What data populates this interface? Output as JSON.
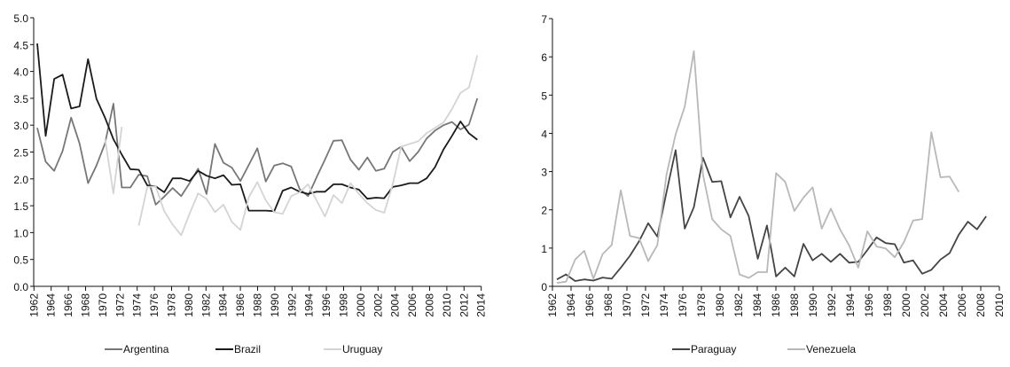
{
  "chart_data": [
    {
      "type": "line",
      "title": "",
      "xlabel": "",
      "ylabel": "",
      "x_start": 1962,
      "x_end": 2014,
      "xticks_step": 2,
      "ylim": [
        0,
        5
      ],
      "yticks": [
        "0.0",
        "0.5",
        "1.0",
        "1.5",
        "2.0",
        "2.5",
        "3.0",
        "3.5",
        "4.0",
        "4.5",
        "5.0"
      ],
      "ytick_values": [
        0,
        0.5,
        1,
        1.5,
        2,
        2.5,
        3,
        3.5,
        4,
        4.5,
        5
      ],
      "grid": false,
      "legend_position": "bottom",
      "series": [
        {
          "name": "Argentina",
          "color": "#777777",
          "start": 1962,
          "values": [
            2.95,
            2.32,
            2.15,
            2.52,
            3.14,
            2.66,
            1.92,
            2.25,
            2.66,
            3.4,
            1.84,
            1.84,
            2.08,
            2.05,
            1.52,
            1.67,
            1.83,
            1.68,
            1.92,
            2.19,
            1.72,
            2.65,
            2.3,
            2.21,
            1.96,
            2.26,
            2.57,
            1.95,
            2.25,
            2.29,
            2.23,
            1.81,
            1.68,
            2.03,
            2.36,
            2.71,
            2.72,
            2.36,
            2.17,
            2.4,
            2.15,
            2.19,
            2.5,
            2.6,
            2.33,
            2.5,
            2.75,
            2.9,
            3.0,
            3.06,
            2.92,
            3.01,
            3.5
          ]
        },
        {
          "name": "Brazil",
          "color": "#1a1a1a",
          "start": 1962,
          "values": [
            4.52,
            2.8,
            3.86,
            3.94,
            3.31,
            3.35,
            4.23,
            3.49,
            3.14,
            2.74,
            2.45,
            2.18,
            2.17,
            1.88,
            1.86,
            1.75,
            2.01,
            2.01,
            1.96,
            2.15,
            2.06,
            2.01,
            2.07,
            1.89,
            1.9,
            1.41,
            1.41,
            1.41,
            1.4,
            1.78,
            1.84,
            1.76,
            1.72,
            1.76,
            1.76,
            1.9,
            1.9,
            1.84,
            1.8,
            1.63,
            1.65,
            1.64,
            1.85,
            1.88,
            1.92,
            1.92,
            2.01,
            2.22,
            2.55,
            2.8,
            3.07,
            2.85,
            2.73
          ]
        },
        {
          "name": "Uruguay",
          "color": "#d4d4d4",
          "start": 1970,
          "values": [
            2.75,
            1.73,
            2.97,
            null,
            1.13,
            1.85,
            1.86,
            1.4,
            1.15,
            0.95,
            1.35,
            1.73,
            1.63,
            1.38,
            1.52,
            1.2,
            1.05,
            1.66,
            1.94,
            1.6,
            1.38,
            1.35,
            1.68,
            1.75,
            1.9,
            1.6,
            1.3,
            1.7,
            1.55,
            1.92,
            1.72,
            1.55,
            1.42,
            1.37,
            1.9,
            2.6,
            2.65,
            2.7,
            2.85,
            2.95,
            3.05,
            3.3,
            3.6,
            3.7,
            4.3
          ]
        }
      ]
    },
    {
      "type": "line",
      "title": "",
      "xlabel": "",
      "ylabel": "",
      "x_start": 1962,
      "x_end": 2010,
      "xticks_step": 2,
      "ylim": [
        0,
        7
      ],
      "yticks": [
        "0",
        "1",
        "2",
        "3",
        "4",
        "5",
        "6",
        "7"
      ],
      "ytick_values": [
        0,
        1,
        2,
        3,
        4,
        5,
        6,
        7
      ],
      "grid": false,
      "legend_position": "bottom",
      "series": [
        {
          "name": "Paraguay",
          "color": "#444444",
          "start": 1962,
          "values": [
            0.18,
            0.31,
            0.14,
            0.18,
            0.15,
            0.23,
            0.2,
            0.49,
            0.8,
            1.18,
            1.65,
            1.3,
            2.46,
            3.56,
            1.51,
            2.07,
            3.36,
            2.73,
            2.75,
            1.8,
            2.34,
            1.84,
            0.72,
            1.59,
            0.26,
            0.49,
            0.26,
            1.11,
            0.68,
            0.85,
            0.64,
            0.85,
            0.62,
            0.64,
            0.95,
            1.28,
            1.13,
            1.1,
            0.62,
            0.68,
            0.33,
            0.43,
            0.7,
            0.87,
            1.35,
            1.69,
            1.49,
            1.83
          ]
        },
        {
          "name": "Venezuela",
          "color": "#b8b8b8",
          "start": 1962,
          "values": [
            0.09,
            0.12,
            0.7,
            0.93,
            0.2,
            0.84,
            1.08,
            2.51,
            1.32,
            1.26,
            0.66,
            1.08,
            2.92,
            3.97,
            4.7,
            6.15,
            2.92,
            1.76,
            1.49,
            1.32,
            0.31,
            0.22,
            0.37,
            0.37,
            2.96,
            2.73,
            1.97,
            2.32,
            2.59,
            1.51,
            2.03,
            1.49,
            1.07,
            0.49,
            1.44,
            1.04,
            0.99,
            0.76,
            1.16,
            1.72,
            1.76,
            4.03,
            2.85,
            2.87,
            2.47
          ]
        }
      ]
    }
  ]
}
